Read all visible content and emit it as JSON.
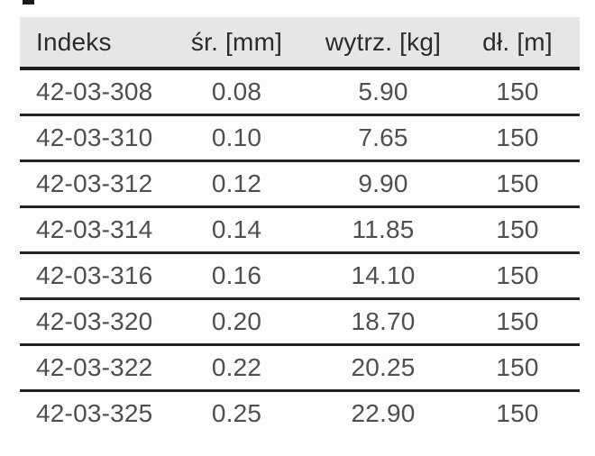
{
  "page": {
    "background": "#fdfdfc"
  },
  "artifacts": {
    "top_crop_mark": "small black mark cropped at top edge"
  },
  "colors": {
    "header_bg": "#e6e6e6",
    "header_text": "#2b2b2b",
    "body_text": "#4f4f4f",
    "rule": "#1e1e1e"
  },
  "table": {
    "columns": [
      {
        "label": "Indeks",
        "align": "left"
      },
      {
        "label": "śr. [mm]",
        "align": "center"
      },
      {
        "label": "wytrz. [kg]",
        "align": "center"
      },
      {
        "label": "dł. [m]",
        "align": "center"
      }
    ],
    "rows": [
      [
        "42-03-308",
        "0.08",
        "5.90",
        "150"
      ],
      [
        "42-03-310",
        "0.10",
        "7.65",
        "150"
      ],
      [
        "42-03-312",
        "0.12",
        "9.90",
        "150"
      ],
      [
        "42-03-314",
        "0.14",
        "11.85",
        "150"
      ],
      [
        "42-03-316",
        "0.16",
        "14.10",
        "150"
      ],
      [
        "42-03-320",
        "0.20",
        "18.70",
        "150"
      ],
      [
        "42-03-322",
        "0.22",
        "20.25",
        "150"
      ],
      [
        "42-03-325",
        "0.25",
        "22.90",
        "150"
      ]
    ]
  }
}
